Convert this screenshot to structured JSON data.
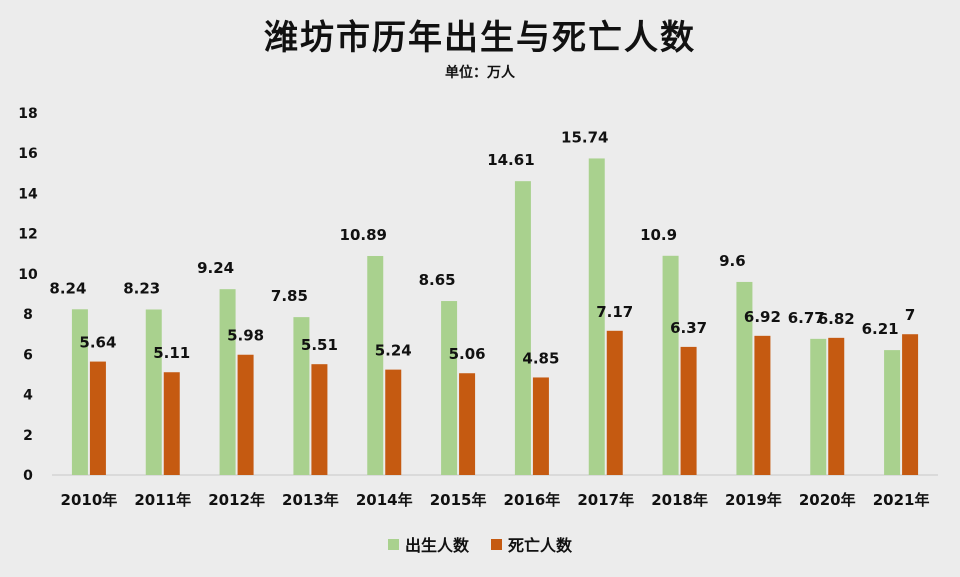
{
  "colors": {
    "birth": "#a9d18e",
    "death": "#c55a11"
  },
  "chart_data": {
    "type": "bar",
    "title": "潍坊市历年出生与死亡人数",
    "subtitle": "单位：万人",
    "categories": [
      "2010年",
      "2011年",
      "2012年",
      "2013年",
      "2014年",
      "2015年",
      "2016年",
      "2017年",
      "2018年",
      "2019年",
      "2020年",
      "2021年"
    ],
    "series": [
      {
        "name": "出生人数",
        "values": [
          8.24,
          8.23,
          9.24,
          7.85,
          10.89,
          8.65,
          14.61,
          15.74,
          10.9,
          9.6,
          6.77,
          6.21
        ],
        "labels": [
          "8.24",
          "8.23",
          "9.24",
          "7.85",
          "10.89",
          "8.65",
          "14.61",
          "15.74",
          "10.9",
          "9.6",
          "6.77",
          "6.21"
        ]
      },
      {
        "name": "死亡人数",
        "values": [
          5.64,
          5.11,
          5.98,
          5.51,
          5.24,
          5.06,
          4.85,
          7.17,
          6.37,
          6.92,
          6.82,
          7
        ],
        "labels": [
          "5.64",
          "5.11",
          "5.98",
          "5.51",
          "5.24",
          "5.06",
          "4.85",
          "7.17",
          "6.37",
          "6.92",
          "6.82",
          "7"
        ]
      }
    ],
    "yticks": [
      "0",
      "2",
      "4",
      "6",
      "8",
      "10",
      "12",
      "14",
      "16",
      "18"
    ],
    "ylim": [
      0,
      18
    ],
    "grid": false,
    "legend_position": "bottom"
  }
}
